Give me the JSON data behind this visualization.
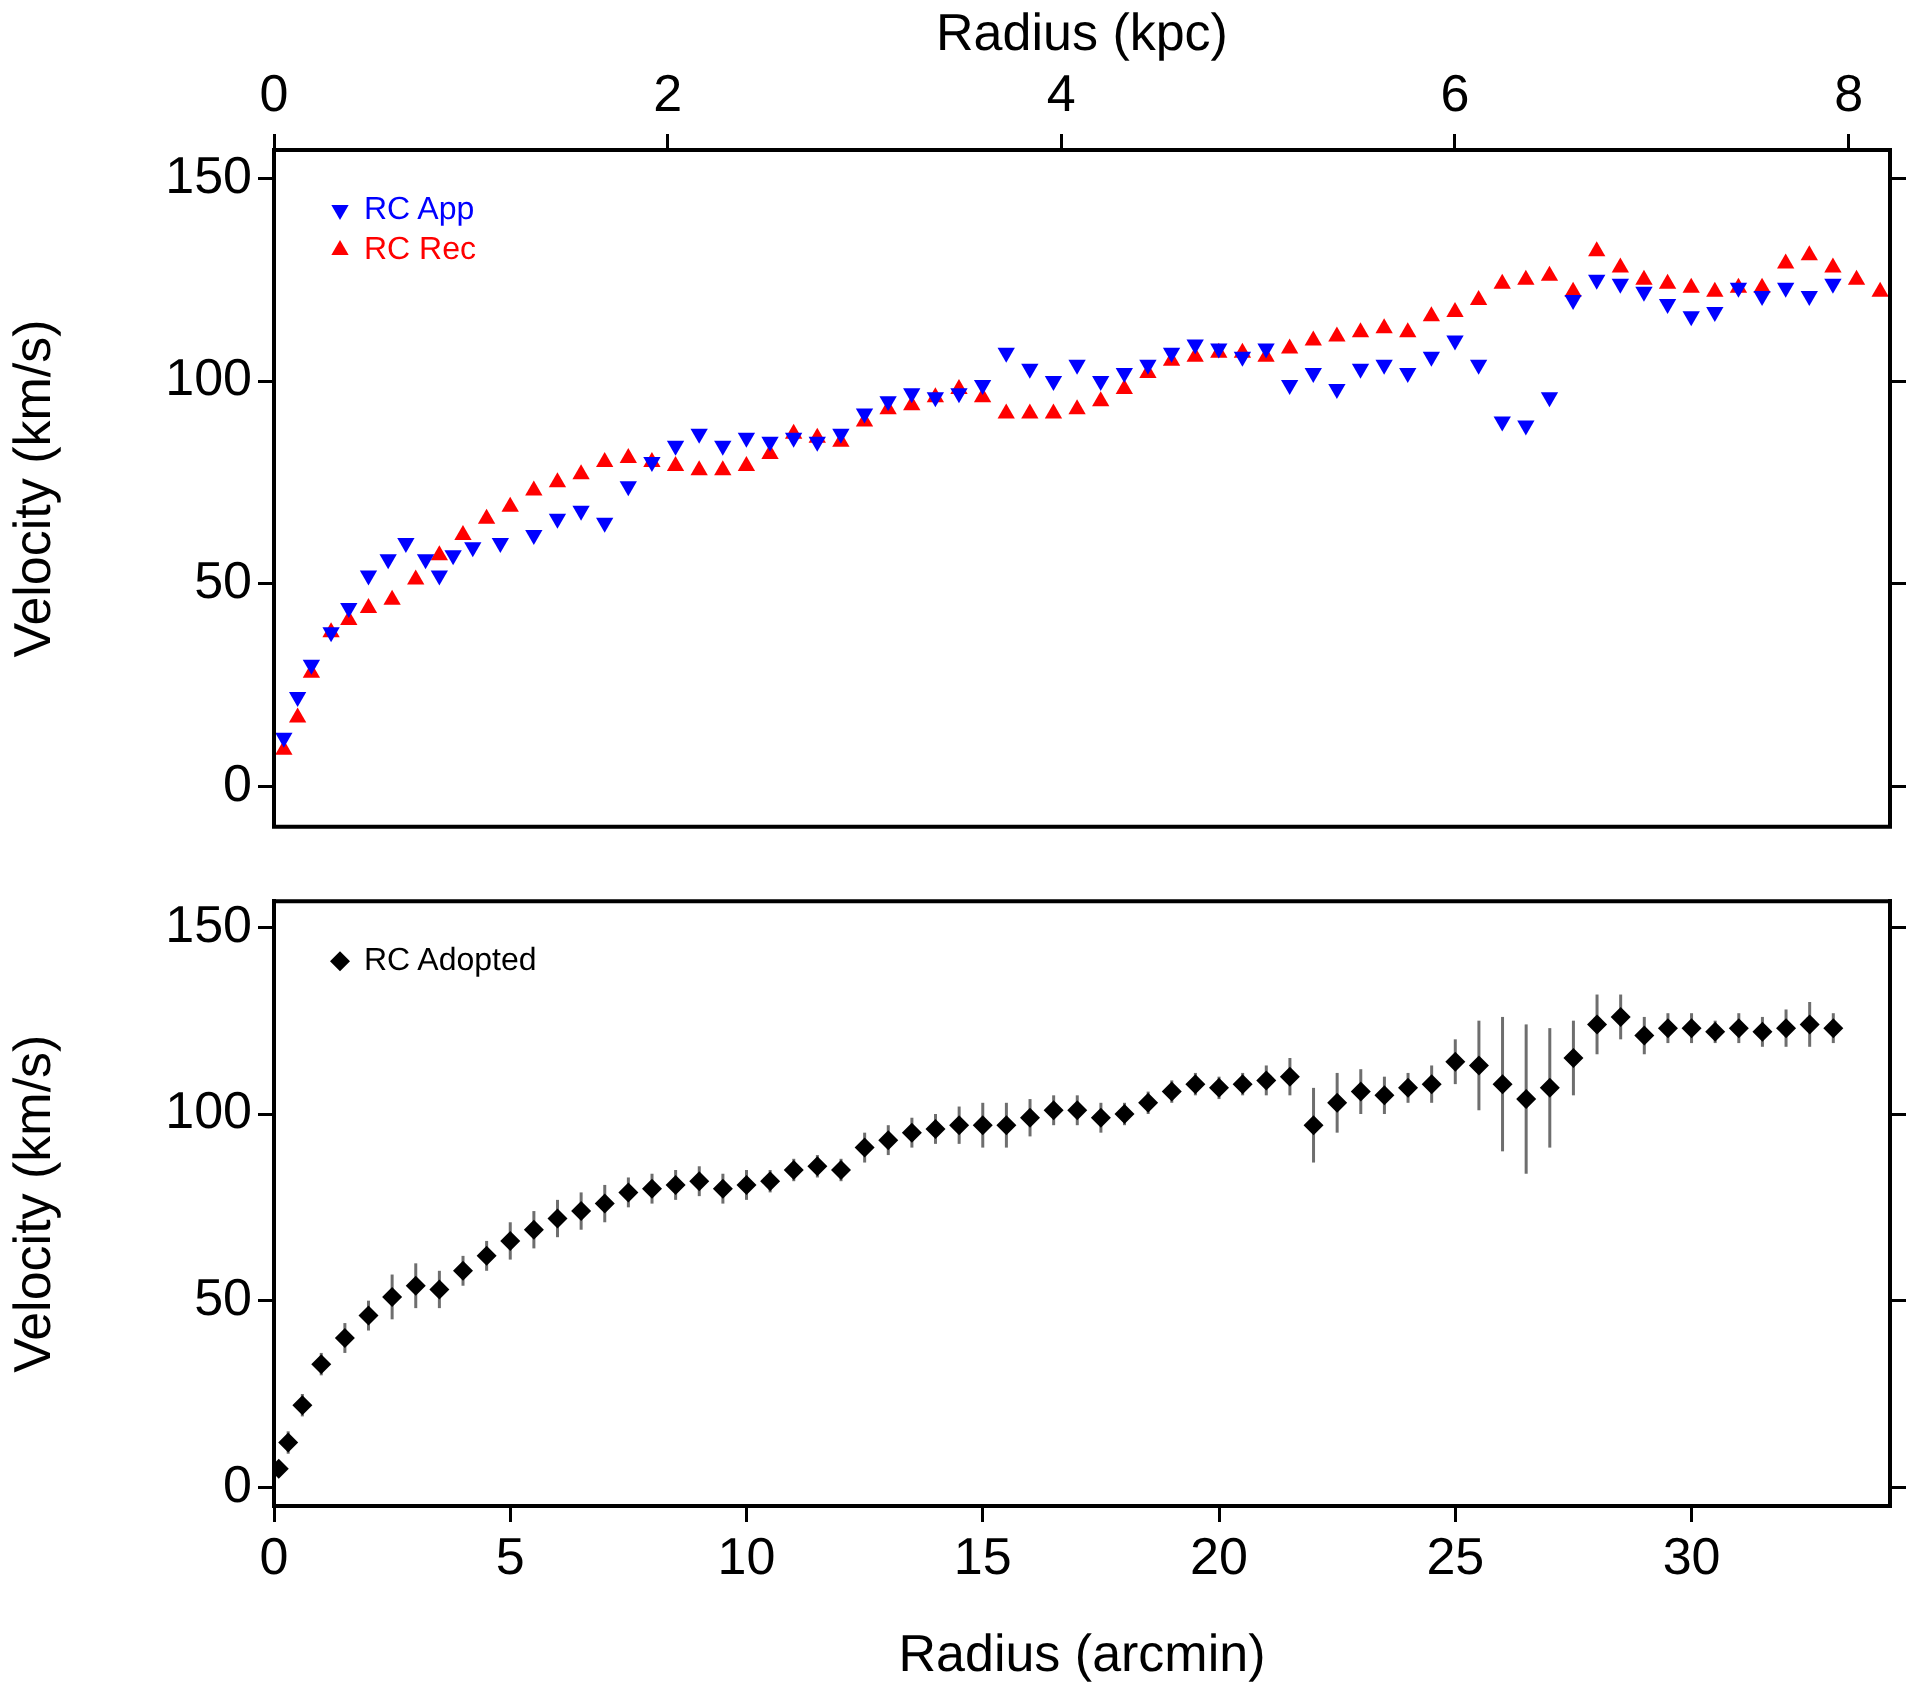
{
  "chart_data": [
    {
      "type": "scatter",
      "ylabel": "Velocity (km/s)",
      "xlabel": "Radius (kpc)",
      "xlim": [
        0,
        8.21
      ],
      "xticks": [
        0,
        2,
        4,
        6,
        8
      ],
      "ylim": [
        -10,
        157
      ],
      "yticks": [
        0,
        50,
        100,
        150
      ],
      "grid": false,
      "legend": "top left",
      "series": [
        {
          "name": "RC App",
          "color": "#0000ff",
          "marker": "triangle-down",
          "x": [
            0.05,
            0.12,
            0.19,
            0.29,
            0.38,
            0.48,
            0.58,
            0.67,
            0.77,
            0.84,
            0.91,
            1.01,
            1.15,
            1.32,
            1.44,
            1.56,
            1.68,
            1.8,
            1.92,
            2.04,
            2.16,
            2.28,
            2.4,
            2.52,
            2.64,
            2.76,
            2.88,
            3.0,
            3.12,
            3.24,
            3.36,
            3.48,
            3.6,
            3.72,
            3.84,
            3.96,
            4.08,
            4.2,
            4.32,
            4.44,
            4.56,
            4.68,
            4.8,
            4.92,
            5.04,
            5.16,
            5.28,
            5.4,
            5.52,
            5.64,
            5.76,
            5.88,
            6.0,
            6.12,
            6.24,
            6.36,
            6.48,
            6.6,
            6.72,
            6.84,
            6.96,
            7.08,
            7.2,
            7.32,
            7.44,
            7.56,
            7.68,
            7.8,
            7.92
          ],
          "values": [
            12,
            22,
            30,
            38,
            44,
            52,
            56,
            60,
            56,
            52,
            57,
            59,
            60,
            62,
            66,
            68,
            65,
            74,
            80,
            84,
            87,
            84,
            86,
            85,
            86,
            85,
            87,
            92,
            95,
            97,
            96,
            97,
            99,
            107,
            103,
            100,
            104,
            100,
            102,
            104,
            107,
            109,
            108,
            106,
            108,
            99,
            102,
            98,
            103,
            104,
            102,
            106,
            110,
            104,
            90,
            89,
            96,
            120,
            125,
            124,
            122,
            119,
            116,
            117,
            123,
            121,
            123,
            121,
            124
          ]
        },
        {
          "name": "RC Rec",
          "color": "#ff0000",
          "marker": "triangle",
          "x": [
            0.05,
            0.12,
            0.19,
            0.29,
            0.38,
            0.48,
            0.6,
            0.72,
            0.84,
            0.96,
            1.08,
            1.2,
            1.32,
            1.44,
            1.56,
            1.68,
            1.8,
            1.92,
            2.04,
            2.16,
            2.28,
            2.4,
            2.52,
            2.64,
            2.76,
            2.88,
            3.0,
            3.12,
            3.24,
            3.36,
            3.48,
            3.6,
            3.72,
            3.84,
            3.96,
            4.08,
            4.2,
            4.32,
            4.44,
            4.56,
            4.68,
            4.8,
            4.92,
            5.04,
            5.16,
            5.28,
            5.4,
            5.52,
            5.64,
            5.76,
            5.88,
            6.0,
            6.12,
            6.24,
            6.36,
            6.48,
            6.6,
            6.72,
            6.84,
            6.96,
            7.08,
            7.2,
            7.32,
            7.44,
            7.56,
            7.68,
            7.8,
            7.92,
            8.04,
            8.16
          ],
          "values": [
            9,
            17,
            28,
            38,
            41,
            44,
            46,
            51,
            57,
            62,
            66,
            69,
            73,
            75,
            77,
            80,
            81,
            80,
            79,
            78,
            78,
            79,
            82,
            87,
            86,
            85,
            90,
            93,
            94,
            96,
            98,
            96,
            92,
            92,
            92,
            93,
            95,
            98,
            102,
            105,
            106,
            107,
            107,
            106,
            108,
            110,
            111,
            112,
            113,
            112,
            116,
            117,
            120,
            124,
            125,
            126,
            122,
            132,
            128,
            125,
            124,
            123,
            122,
            123,
            123,
            129,
            131,
            128,
            125,
            122
          ]
        }
      ]
    },
    {
      "type": "scatter",
      "ylabel": "Velocity (km/s)",
      "xlabel": "Radius (arcmin)",
      "xlim": [
        0,
        34.2
      ],
      "xticks": [
        0,
        5,
        10,
        15,
        20,
        25,
        30
      ],
      "ylim": [
        -5,
        157
      ],
      "yticks": [
        0,
        50,
        100,
        150
      ],
      "grid": false,
      "legend": "top left",
      "series": [
        {
          "name": "RC Adopted",
          "color": "#000000",
          "marker": "diamond",
          "x": [
            0.1,
            0.3,
            0.6,
            1.0,
            1.5,
            2.0,
            2.5,
            3.0,
            3.5,
            4.0,
            4.5,
            5.0,
            5.5,
            6.0,
            6.5,
            7.0,
            7.5,
            8.0,
            8.5,
            9.0,
            9.5,
            10.0,
            10.5,
            11.0,
            11.5,
            12.0,
            12.5,
            13.0,
            13.5,
            14.0,
            14.5,
            15.0,
            15.5,
            16.0,
            16.5,
            17.0,
            17.5,
            18.0,
            18.5,
            19.0,
            19.5,
            20.0,
            20.5,
            21.0,
            21.5,
            22.0,
            22.5,
            23.0,
            23.5,
            24.0,
            24.5,
            25.0,
            25.5,
            26.0,
            26.5,
            27.0,
            27.5,
            28.0,
            28.5,
            29.0,
            29.5,
            30.0,
            30.5,
            31.0,
            31.5,
            32.0,
            32.5,
            33.0
          ],
          "values": [
            5,
            12,
            22,
            33,
            40,
            46,
            51,
            54,
            53,
            58,
            62,
            66,
            69,
            72,
            74,
            76,
            79,
            80,
            81,
            82,
            80,
            81,
            82,
            85,
            86,
            85,
            91,
            93,
            95,
            96,
            97,
            97,
            97,
            99,
            101,
            101,
            99,
            100,
            103,
            106,
            108,
            107,
            108,
            109,
            110,
            97,
            103,
            106,
            105,
            107,
            108,
            114,
            113,
            108,
            104,
            107,
            115,
            124,
            126,
            121,
            123,
            123,
            122,
            123,
            122,
            123,
            124,
            123
          ],
          "errors": [
            2,
            3,
            3,
            3,
            4,
            4,
            6,
            6,
            5,
            4,
            4,
            5,
            5,
            5,
            5,
            5,
            4,
            4,
            4,
            4,
            4,
            4,
            3,
            3,
            3,
            3,
            4,
            4,
            4,
            4,
            5,
            6,
            6,
            5,
            4,
            4,
            4,
            3,
            3,
            3,
            3,
            3,
            3,
            4,
            5,
            10,
            8,
            6,
            5,
            4,
            5,
            6,
            12,
            18,
            20,
            16,
            10,
            8,
            6,
            5,
            4,
            4,
            3,
            4,
            4,
            5,
            6,
            4
          ]
        }
      ]
    }
  ]
}
